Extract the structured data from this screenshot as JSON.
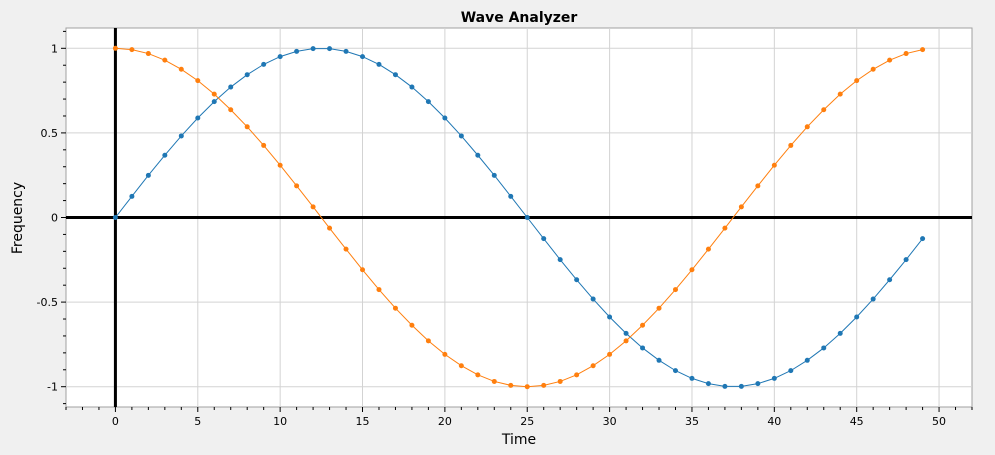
{
  "chart_data": {
    "type": "line",
    "title": "Wave Analyzer",
    "xlabel": "Time",
    "ylabel": "Frequency",
    "xlim": [
      -3,
      52
    ],
    "ylim": [
      -1.12,
      1.12
    ],
    "x_ticks": [
      0,
      5,
      10,
      15,
      20,
      25,
      30,
      35,
      40,
      45,
      50
    ],
    "x_tick_labels": [
      "0",
      "5",
      "10",
      "15",
      "20",
      "25",
      "30",
      "35",
      "40",
      "45",
      "50"
    ],
    "y_ticks": [
      1,
      0.5,
      0,
      -0.5,
      -1
    ],
    "y_tick_labels": [
      "1",
      "0.5",
      "0",
      "-0.5",
      "-1"
    ],
    "grid": true,
    "legend": "none",
    "x": [
      0,
      1,
      2,
      3,
      4,
      5,
      6,
      7,
      8,
      9,
      10,
      11,
      12,
      13,
      14,
      15,
      16,
      17,
      18,
      19,
      20,
      21,
      22,
      23,
      24,
      25,
      26,
      27,
      28,
      29,
      30,
      31,
      32,
      33,
      34,
      35,
      36,
      37,
      38,
      39,
      40,
      41,
      42,
      43,
      44,
      45,
      46,
      47,
      48,
      49
    ],
    "series": [
      {
        "color": "#1f77b4",
        "values": [
          0,
          0.125,
          0.249,
          0.368,
          0.482,
          0.588,
          0.685,
          0.771,
          0.844,
          0.905,
          0.951,
          0.982,
          0.998,
          0.998,
          0.982,
          0.951,
          0.905,
          0.844,
          0.771,
          0.685,
          0.588,
          0.482,
          0.368,
          0.249,
          0.125,
          0,
          -0.125,
          -0.249,
          -0.368,
          -0.482,
          -0.588,
          -0.685,
          -0.771,
          -0.844,
          -0.905,
          -0.951,
          -0.982,
          -0.998,
          -0.998,
          -0.982,
          -0.951,
          -0.905,
          -0.844,
          -0.771,
          -0.685,
          -0.588,
          -0.482,
          -0.368,
          -0.249,
          -0.125
        ]
      },
      {
        "color": "#ff7f0e",
        "values": [
          1,
          0.992,
          0.969,
          0.93,
          0.876,
          0.809,
          0.729,
          0.637,
          0.536,
          0.426,
          0.309,
          0.187,
          0.063,
          -0.063,
          -0.187,
          -0.309,
          -0.426,
          -0.536,
          -0.637,
          -0.729,
          -0.809,
          -0.876,
          -0.93,
          -0.969,
          -0.992,
          -1,
          -0.992,
          -0.969,
          -0.93,
          -0.876,
          -0.809,
          -0.729,
          -0.637,
          -0.536,
          -0.426,
          -0.309,
          -0.187,
          -0.063,
          0.063,
          0.187,
          0.309,
          0.426,
          0.536,
          0.637,
          0.729,
          0.809,
          0.876,
          0.93,
          0.969,
          0.992
        ]
      }
    ]
  }
}
